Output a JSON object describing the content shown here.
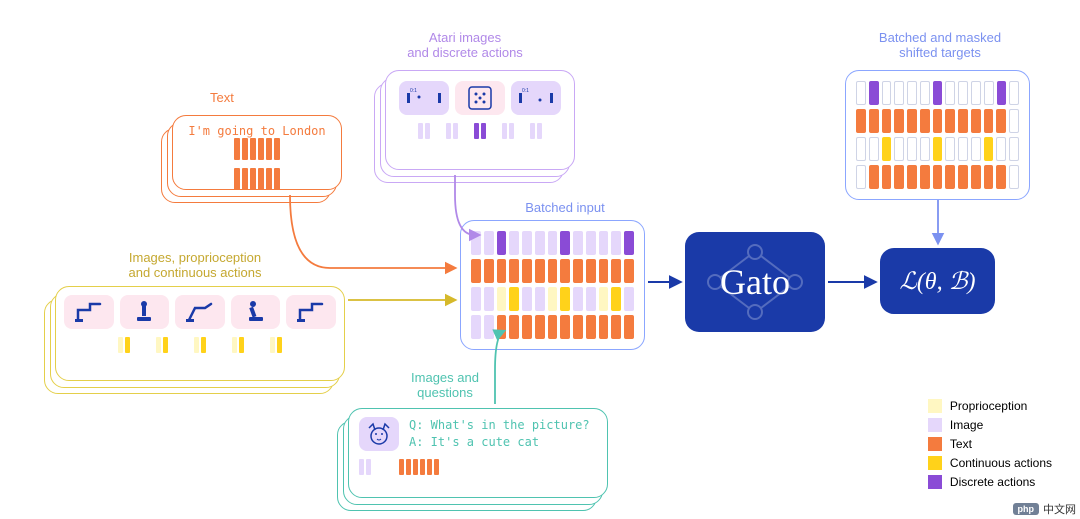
{
  "colors": {
    "proprioception": "#fff7c2",
    "image": "#e5d7fb",
    "image_alt": "#d3bbfa",
    "text": "#f47b3e",
    "continuous": "#ffd21a",
    "discrete": "#8a4bd6",
    "empty": "#ffffff",
    "empty_border": "#cfd4e6",
    "orange_border": "#f47b3e",
    "purple_border": "#c9a8f5",
    "yellow_border": "#e4cf4a",
    "teal_border": "#4fc3b0",
    "blue_border": "#8ba6ff",
    "navy": "#1a3aa8",
    "gato_bg": "#1a3aa8",
    "loss_text": "#ffffff",
    "pink_tile": "#fde7ef"
  },
  "titles": {
    "text": "Text",
    "atari": "Atari images\nand discrete actions",
    "robot": "Images, proprioception\nand continuous actions",
    "vqa": "Images and\nquestions",
    "batched": "Batched input",
    "targets": "Batched and masked\nshifted targets"
  },
  "text_card": {
    "text": "I'm going to London"
  },
  "vqa_card": {
    "q": "Q: What's in the picture?",
    "a": "A: It's a cute cat"
  },
  "gato": "Gato",
  "loss": "ℒ(θ, ℬ)",
  "legend": [
    {
      "label": "Proprioception",
      "key": "proprioception"
    },
    {
      "label": "Image",
      "key": "image"
    },
    {
      "label": "Text",
      "key": "text"
    },
    {
      "label": "Continuous actions",
      "key": "continuous"
    },
    {
      "label": "Discrete actions",
      "key": "discrete"
    }
  ],
  "text_bars": [
    "text",
    "text",
    "text",
    "text",
    "text",
    "text"
  ],
  "atari_bars": [
    "image",
    "image",
    "discrete",
    "image",
    "image"
  ],
  "vqa_bars_left": [
    "image",
    "image"
  ],
  "vqa_bars_right": [
    "text",
    "text",
    "text",
    "text",
    "text",
    "text"
  ],
  "robot_pair": [
    "proprioception",
    "continuous"
  ],
  "batched_rows": [
    [
      "image",
      "image",
      "discrete",
      "image",
      "image",
      "image",
      "image",
      "discrete",
      "image",
      "image",
      "image",
      "image",
      "discrete"
    ],
    [
      "text",
      "text",
      "text",
      "text",
      "text",
      "text",
      "text",
      "text",
      "text",
      "text",
      "text",
      "text",
      "text"
    ],
    [
      "image",
      "image",
      "proprioception",
      "continuous",
      "image",
      "image",
      "proprioception",
      "continuous",
      "image",
      "image",
      "proprioception",
      "continuous",
      "image"
    ],
    [
      "image",
      "image",
      "text",
      "text",
      "text",
      "text",
      "text",
      "text",
      "text",
      "text",
      "text",
      "text",
      "text"
    ]
  ],
  "target_rows": [
    [
      "empty",
      "discrete",
      "empty",
      "empty",
      "empty",
      "empty",
      "discrete",
      "empty",
      "empty",
      "empty",
      "empty",
      "discrete",
      "empty"
    ],
    [
      "text",
      "text",
      "text",
      "text",
      "text",
      "text",
      "text",
      "text",
      "text",
      "text",
      "text",
      "text",
      "empty"
    ],
    [
      "empty",
      "empty",
      "continuous",
      "empty",
      "empty",
      "empty",
      "continuous",
      "empty",
      "empty",
      "empty",
      "continuous",
      "empty",
      "empty"
    ],
    [
      "empty",
      "text",
      "text",
      "text",
      "text",
      "text",
      "text",
      "text",
      "text",
      "text",
      "text",
      "text",
      "empty"
    ]
  ],
  "watermark": "中文网"
}
